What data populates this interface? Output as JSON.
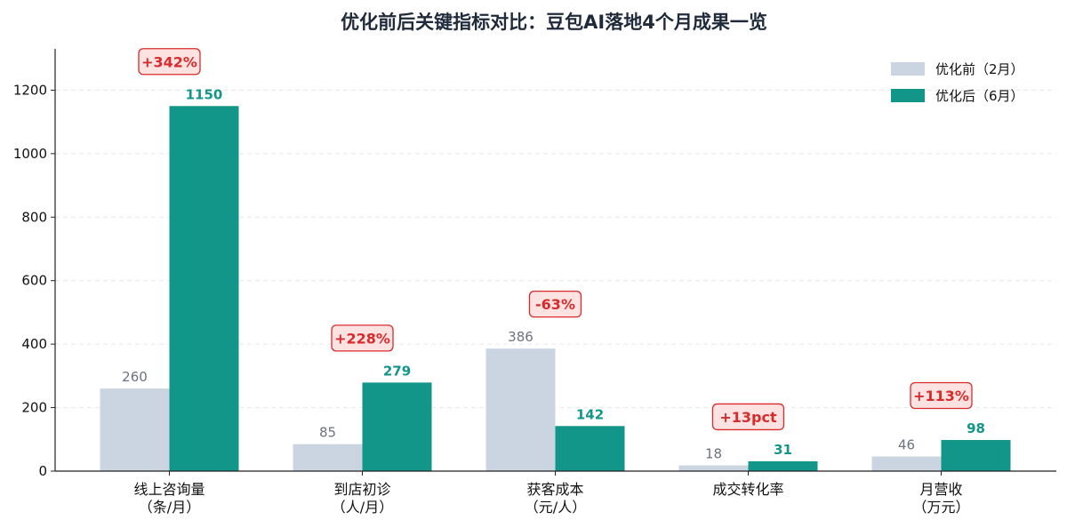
{
  "chart_data": {
    "type": "bar",
    "title": "优化前后关键指标对比：豆包AI落地4个月成果一览",
    "categories": [
      [
        "线上咨询量",
        "（条/月）"
      ],
      [
        "到店初诊",
        "（人/月）"
      ],
      [
        "获客成本",
        "（元/人）"
      ],
      [
        "成交转化率",
        ""
      ],
      [
        "月营收",
        "（万元）"
      ]
    ],
    "series": [
      {
        "name": "优化前（2月）",
        "values": [
          260,
          85,
          386,
          18,
          46
        ],
        "labels": [
          "260",
          "85",
          "386",
          "18",
          "46"
        ]
      },
      {
        "name": "优化后（6月）",
        "values": [
          1150,
          279,
          142,
          31,
          98
        ],
        "labels": [
          "1150",
          "279",
          "142",
          "31",
          "98"
        ]
      }
    ],
    "annotations": [
      "+342%",
      "+228%",
      "-63%",
      "+13pct",
      "+113%"
    ],
    "ylim": [
      0,
      1330
    ],
    "yticks": [
      0,
      200,
      400,
      600,
      800,
      1000,
      1200
    ],
    "ytick_labels": [
      "0",
      "200",
      "400",
      "600",
      "800",
      "1000",
      "1200"
    ],
    "xlabel": "",
    "ylabel": "",
    "grid": "horizontal dashed",
    "legend_position": "top-right",
    "colors": {
      "before": "#cbd5e1",
      "after": "#13968a",
      "annotation_text": "#d92b2b",
      "annotation_fill": "#fde2e2",
      "annotation_border": "#d92b2b",
      "grid": "#e5e7eb",
      "axis": "#222222",
      "title": "#1f2a3a"
    }
  }
}
